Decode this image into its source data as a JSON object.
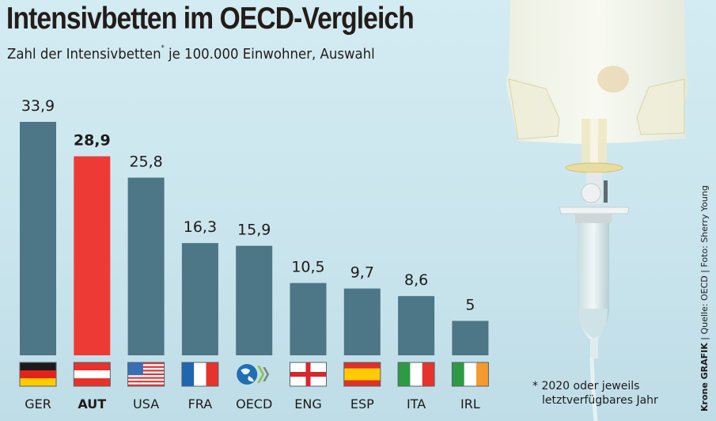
{
  "header": {
    "title": "Intensivbetten im OECD-Vergleich",
    "subtitle_main": "Zahl der Intensivbetten",
    "subtitle_mark": "*",
    "subtitle_rest": " je 100.000 Einwohner, Auswahl"
  },
  "footnote": {
    "line1": "* 2020 oder jeweils",
    "line2": "letztverfügbares Jahr"
  },
  "credit": {
    "brand": "Krone GRAFIK",
    "rest": " | Quelle: OECD | Foto: Sherry Young"
  },
  "colors": {
    "bar": "#4d7686",
    "highlight": "#ee3a35"
  },
  "chart_data": {
    "type": "bar",
    "title": "Intensivbetten im OECD-Vergleich",
    "subtitle": "Zahl der Intensivbetten* je 100.000 Einwohner, Auswahl",
    "xlabel": "",
    "ylabel": "",
    "ylim": [
      0,
      33.9
    ],
    "grid": false,
    "legend": "none",
    "categories": [
      "GER",
      "AUT",
      "USA",
      "FRA",
      "OECD",
      "ENG",
      "ESP",
      "ITA",
      "IRL"
    ],
    "values": [
      33.9,
      28.9,
      25.8,
      16.3,
      15.9,
      10.5,
      9.7,
      8.6,
      5
    ],
    "value_labels": [
      "33,9",
      "28,9",
      "25,8",
      "16,3",
      "15,9",
      "10,5",
      "9,7",
      "8,6",
      "5"
    ],
    "highlight": "AUT",
    "flags": [
      "flag-germany",
      "flag-austria",
      "flag-usa",
      "flag-france",
      "logo-oecd",
      "flag-england",
      "flag-spain",
      "flag-italy",
      "flag-ireland"
    ],
    "annotations": [
      "* 2020 oder jeweils letztverfügbares Jahr"
    ]
  }
}
